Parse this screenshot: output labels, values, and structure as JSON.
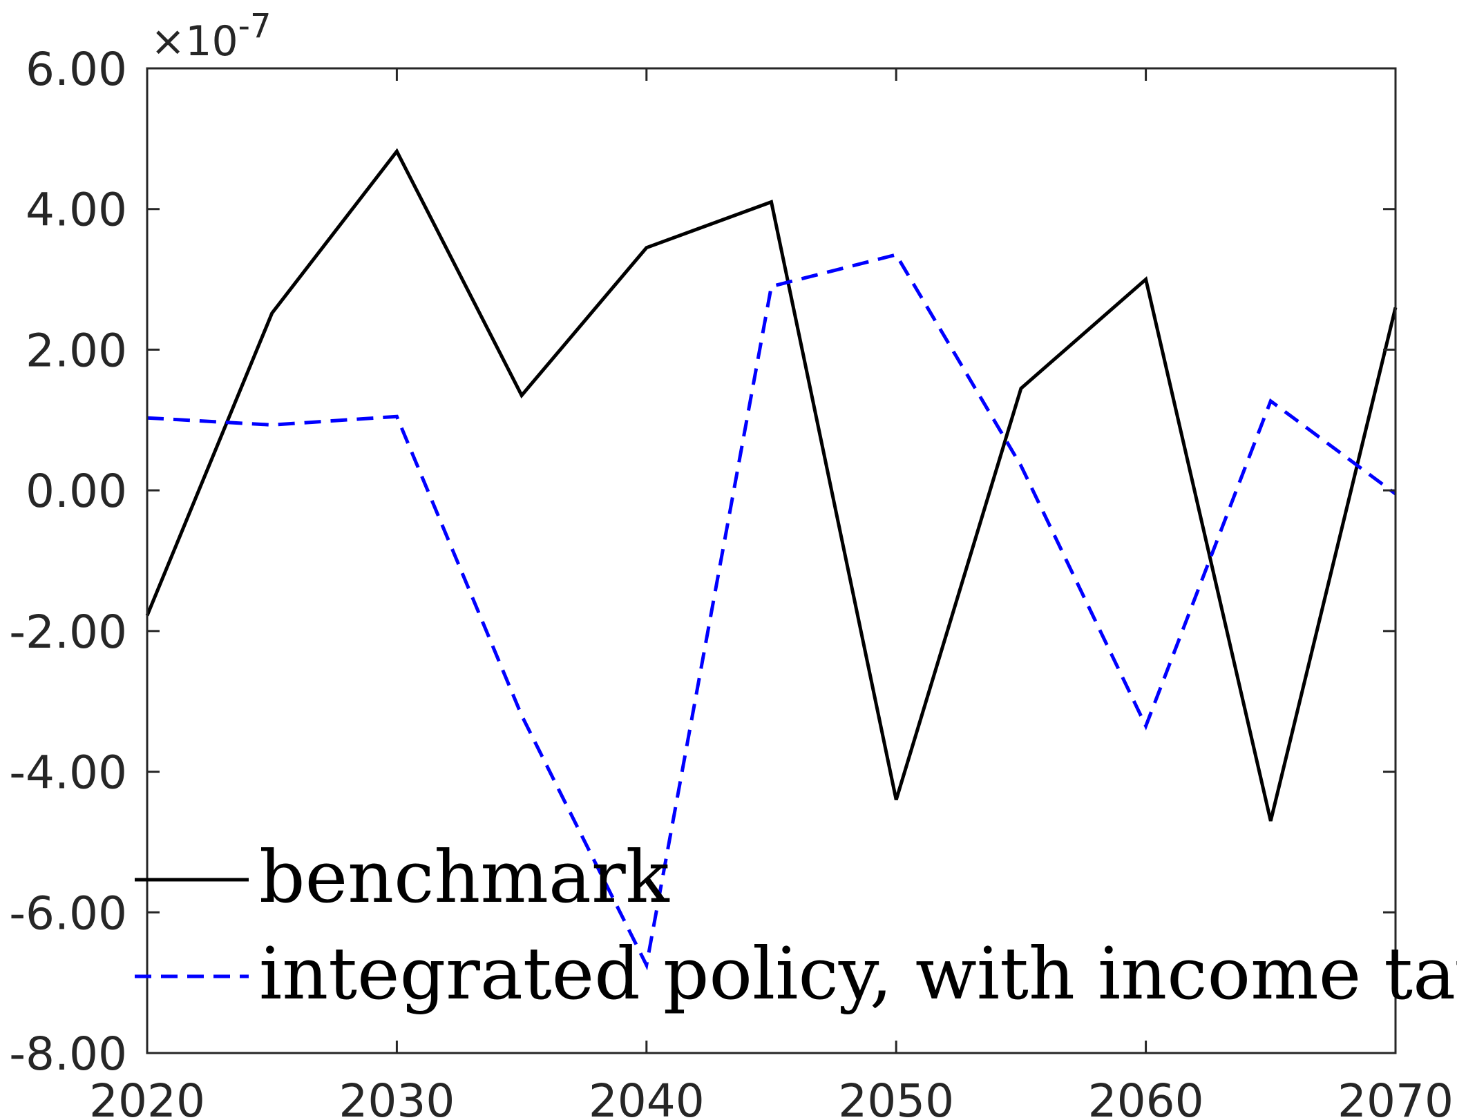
{
  "chart_data": {
    "type": "line",
    "title": "",
    "xlabel": "",
    "ylabel": "",
    "y_exponent_label": "×10",
    "y_exponent_power": "-7",
    "x": [
      2020,
      2025,
      2030,
      2035,
      2040,
      2045,
      2050,
      2055,
      2060,
      2065,
      2070
    ],
    "xlim": [
      2020,
      2070
    ],
    "ylim": [
      -8.0,
      6.0
    ],
    "x_ticks": [
      2020,
      2030,
      2040,
      2050,
      2060,
      2070
    ],
    "y_ticks": [
      6.0,
      4.0,
      2.0,
      0.0,
      -2.0,
      -4.0,
      -6.0,
      -8.0
    ],
    "x_tick_labels": [
      "2020",
      "2030",
      "2040",
      "2050",
      "2060",
      "2070"
    ],
    "y_tick_labels": [
      "6.00",
      "4.00",
      "2.00",
      "0.00",
      "-2.00",
      "-4.00",
      "-6.00",
      "-8.00"
    ],
    "grid": false,
    "legend_position": "bottom-left",
    "series": [
      {
        "name": "benchmark",
        "color": "#000000",
        "dash": "solid",
        "values": [
          -1.78,
          2.52,
          4.82,
          1.35,
          3.45,
          4.1,
          -4.4,
          1.45,
          3.0,
          -4.7,
          2.6
        ]
      },
      {
        "name": "integrated policy, with income tax",
        "color": "#0000ff",
        "dash": "dashed",
        "values": [
          1.03,
          0.93,
          1.05,
          -3.2,
          -6.75,
          2.9,
          3.35,
          0.35,
          -3.35,
          1.27,
          -0.05
        ]
      }
    ]
  }
}
